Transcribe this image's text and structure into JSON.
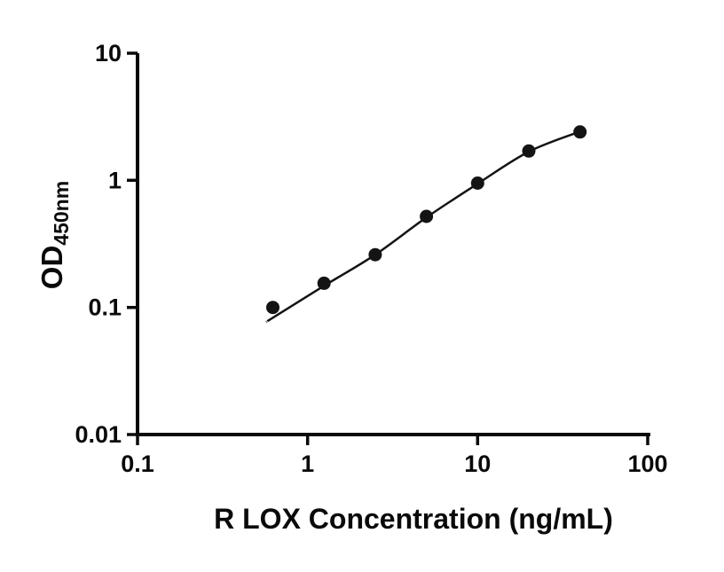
{
  "figure": {
    "background": "#ffffff",
    "axis_color": "#0a0a0a",
    "text_color": "#0a0a0a"
  },
  "chart_data": {
    "type": "scatter",
    "title": "",
    "xlabel": "R LOX Concentration (ng/mL)",
    "ylabel_main": "OD",
    "ylabel_sub": "450nm",
    "x_scale": "log",
    "y_scale": "log",
    "xlim": [
      0.1,
      100
    ],
    "ylim": [
      0.01,
      10
    ],
    "grid": false,
    "legend": "none",
    "axis_color": "#0a0a0a",
    "x_tick_values": [
      0.1,
      1,
      10,
      100
    ],
    "x_tick_labels": [
      "0.1",
      "1",
      "10",
      "100"
    ],
    "y_tick_values": [
      0.01,
      0.1,
      1,
      10
    ],
    "y_tick_labels": [
      "0.01",
      "0.1",
      "1",
      "10"
    ],
    "series": [
      {
        "name": "standard-curve-points",
        "type": "scatter",
        "marker": "circle",
        "color": "#141414",
        "points": [
          {
            "x": 0.625,
            "y": 0.1
          },
          {
            "x": 1.25,
            "y": 0.155
          },
          {
            "x": 2.5,
            "y": 0.26
          },
          {
            "x": 5,
            "y": 0.52
          },
          {
            "x": 10,
            "y": 0.95
          },
          {
            "x": 20,
            "y": 1.7
          },
          {
            "x": 40,
            "y": 2.4
          }
        ]
      },
      {
        "name": "fitted-curve",
        "type": "line",
        "color": "#141414",
        "points": [
          {
            "x": 0.58,
            "y": 0.078
          },
          {
            "x": 0.625,
            "y": 0.083
          },
          {
            "x": 1.25,
            "y": 0.148
          },
          {
            "x": 2.5,
            "y": 0.26
          },
          {
            "x": 5,
            "y": 0.51
          },
          {
            "x": 10,
            "y": 0.94
          },
          {
            "x": 20,
            "y": 1.68
          },
          {
            "x": 40,
            "y": 2.42
          }
        ]
      }
    ]
  }
}
